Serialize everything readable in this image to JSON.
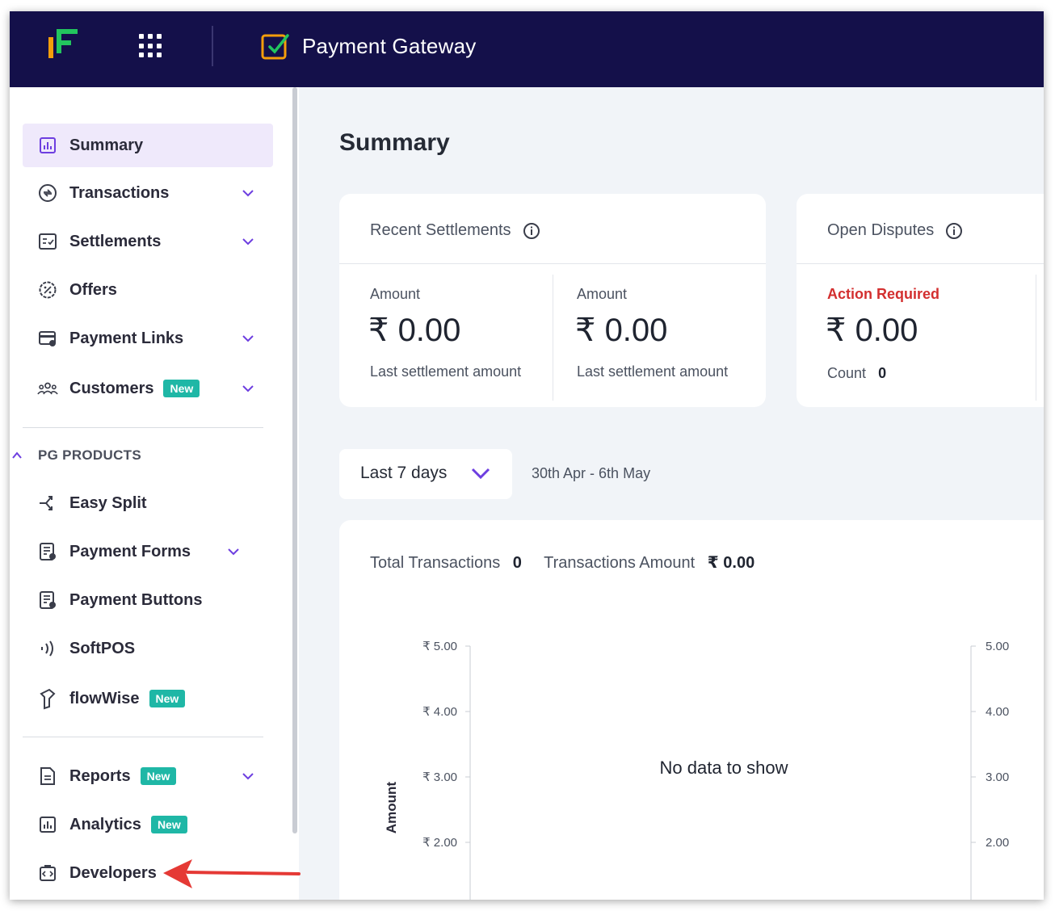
{
  "header": {
    "app_title": "Payment Gateway",
    "logo_icon": "cashfree-logo-icon",
    "apps_icon": "grid-apps-icon"
  },
  "sidebar": {
    "items": [
      {
        "label": "Summary",
        "icon": "bar-chart-icon",
        "active": true
      },
      {
        "label": "Transactions",
        "icon": "exchange-icon",
        "expandable": true
      },
      {
        "label": "Settlements",
        "icon": "checklist-icon",
        "expandable": true
      },
      {
        "label": "Offers",
        "icon": "discount-icon"
      },
      {
        "label": "Payment Links",
        "icon": "payment-link-icon",
        "expandable": true
      },
      {
        "label": "Customers",
        "icon": "users-icon",
        "badge": "New",
        "expandable": true
      }
    ],
    "section_title": "PG PRODUCTS",
    "products": [
      {
        "label": "Easy Split",
        "icon": "split-icon"
      },
      {
        "label": "Payment Forms",
        "icon": "form-icon",
        "expandable": true
      },
      {
        "label": "Payment Buttons",
        "icon": "form-icon"
      },
      {
        "label": "SoftPOS",
        "icon": "contactless-icon"
      },
      {
        "label": "flowWise",
        "icon": "flow-icon",
        "badge": "New"
      }
    ],
    "bottom": [
      {
        "label": "Reports",
        "icon": "document-icon",
        "badge": "New",
        "expandable": true
      },
      {
        "label": "Analytics",
        "icon": "analytics-icon",
        "badge": "New"
      },
      {
        "label": "Developers",
        "icon": "code-icon"
      }
    ],
    "annotation_color": "#e53935"
  },
  "main": {
    "page_title": "Summary",
    "recent_settlements": {
      "title": "Recent Settlements",
      "cols": [
        {
          "label": "Amount",
          "value": "₹ 0.00",
          "sub": "Last settlement amount"
        },
        {
          "label": "Amount",
          "value": "₹ 0.00",
          "sub": "Last settlement amount"
        }
      ]
    },
    "open_disputes": {
      "title": "Open Disputes",
      "label": "Action Required",
      "value": "₹ 0.00",
      "count_label": "Count",
      "count_value": "0"
    },
    "date_range": {
      "selected": "Last 7 days",
      "dates": "30th Apr - 6th May"
    },
    "stats": {
      "total_label": "Total Transactions",
      "total_value": "0",
      "amount_label": "Transactions Amount",
      "amount_value": "₹ 0.00"
    }
  },
  "chart_data": {
    "type": "line",
    "title": "",
    "empty_message": "No data to show",
    "ylabel": "Amount",
    "y_ticks_left": [
      "₹ 5.00",
      "₹ 4.00",
      "₹ 3.00",
      "₹ 2.00"
    ],
    "y_ticks_right": [
      "5.00",
      "4.00",
      "3.00",
      "2.00"
    ],
    "ylim": [
      2,
      5
    ],
    "series": []
  }
}
